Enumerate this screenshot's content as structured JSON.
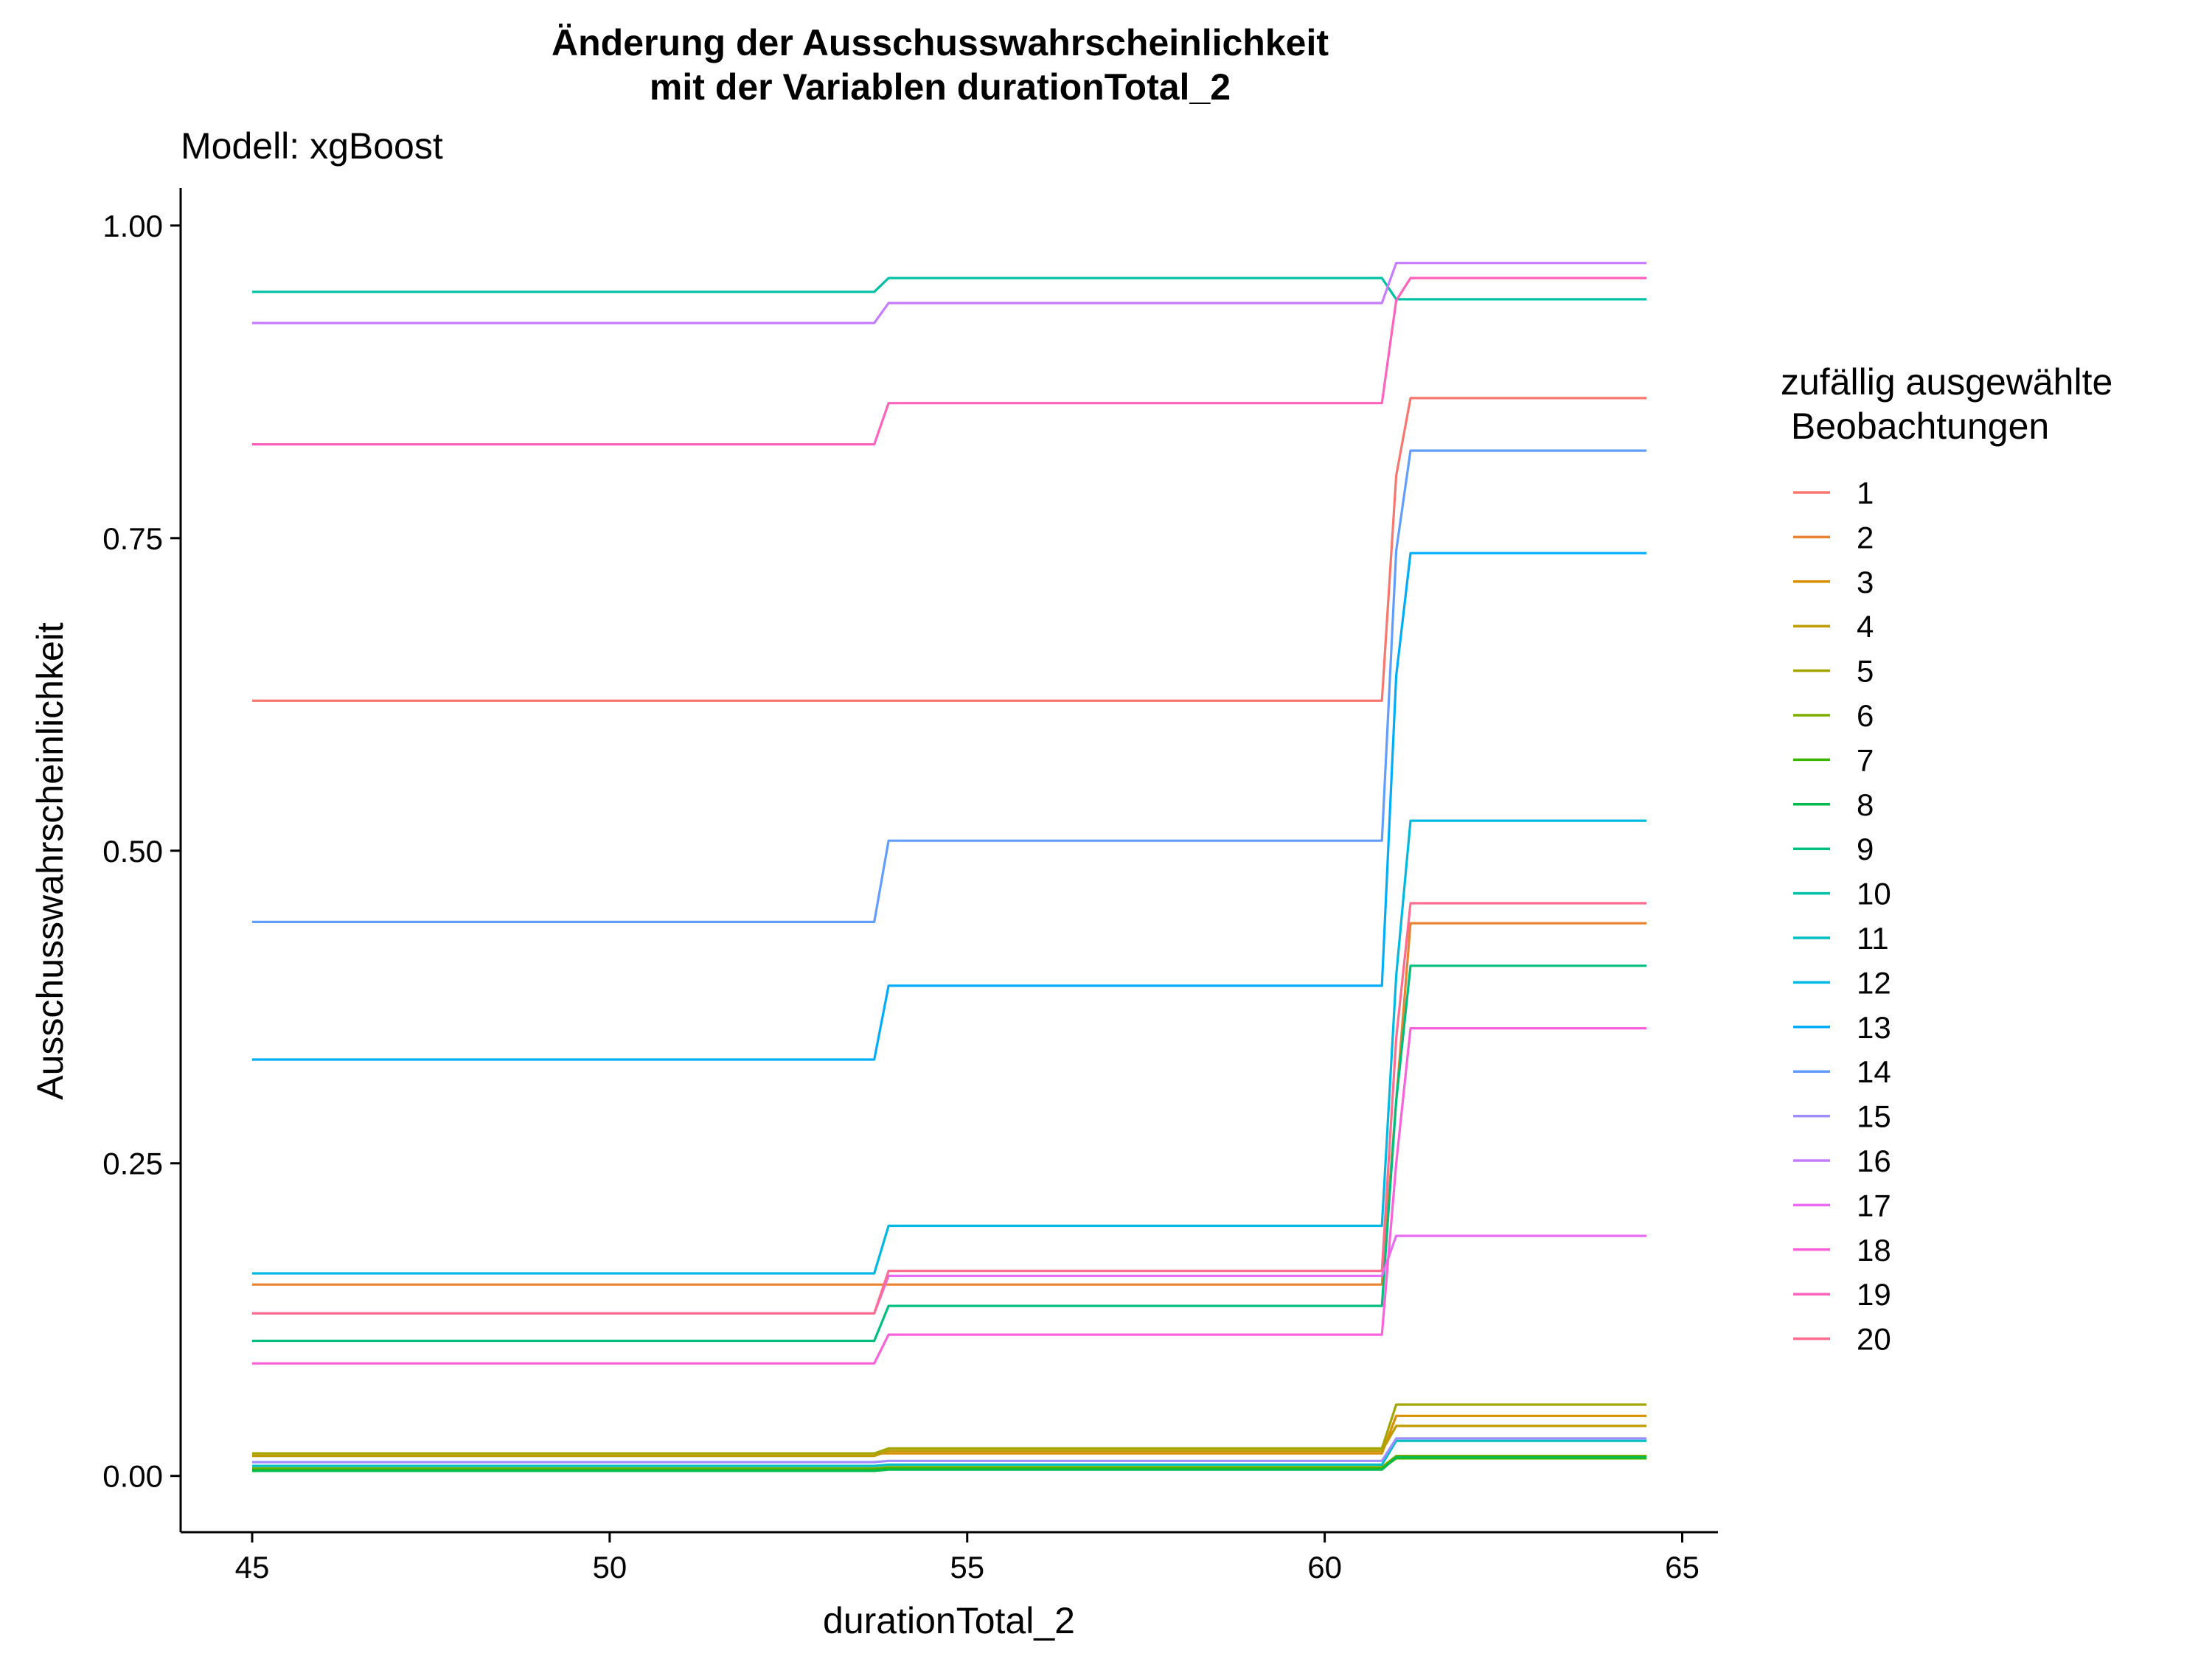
{
  "chart_data": {
    "type": "line",
    "title_line1": "Änderung der Ausschusswahrscheinlichkeit",
    "title_line2": "mit der Variablen durationTotal_2",
    "subtitle": "Modell: xgBoost",
    "xlabel": "durationTotal_2",
    "ylabel": "Ausschusswahrscheinlichkeit",
    "xlim": [
      44,
      65.5
    ],
    "ylim": [
      -0.045,
      1.03
    ],
    "x_ticks": [
      45,
      50,
      55,
      60,
      65
    ],
    "x_tick_labels": [
      "45",
      "50",
      "55",
      "60",
      "65"
    ],
    "y_ticks": [
      0,
      0.25,
      0.5,
      0.75,
      1.0
    ],
    "y_tick_labels": [
      "0.00",
      "0.25",
      "0.50",
      "0.75",
      "1.00"
    ],
    "grid": false,
    "legend_title_line1": "zufällig ausgewählte",
    "legend_title_line2": " Beobachtungen",
    "legend_position": "right",
    "x": [
      45,
      53.7,
      53.9,
      60.8,
      61.0,
      61.2,
      64.5
    ],
    "series": [
      {
        "name": "1",
        "color": "#F8766D",
        "values": [
          0.62,
          0.62,
          0.62,
          0.62,
          0.8,
          0.862,
          0.862
        ]
      },
      {
        "name": "2",
        "color": "#EA8331",
        "values": [
          0.153,
          0.153,
          0.153,
          0.153,
          0.3,
          0.442,
          0.442
        ]
      },
      {
        "name": "3",
        "color": "#D89000",
        "values": [
          0.018,
          0.018,
          0.018,
          0.018,
          0.048,
          0.048,
          0.048
        ]
      },
      {
        "name": "4",
        "color": "#C09B00",
        "values": [
          0.016,
          0.016,
          0.02,
          0.02,
          0.04,
          0.04,
          0.04
        ]
      },
      {
        "name": "5",
        "color": "#A3A500",
        "values": [
          0.018,
          0.018,
          0.022,
          0.022,
          0.057,
          0.057,
          0.057
        ]
      },
      {
        "name": "6",
        "color": "#7CAE00",
        "values": [
          0.006,
          0.006,
          0.007,
          0.007,
          0.016,
          0.016,
          0.016
        ]
      },
      {
        "name": "7",
        "color": "#39B600",
        "values": [
          0.005,
          0.005,
          0.006,
          0.006,
          0.014,
          0.014,
          0.014
        ]
      },
      {
        "name": "8",
        "color": "#00BB4E",
        "values": [
          0.004,
          0.004,
          0.005,
          0.005,
          0.015,
          0.015,
          0.015
        ]
      },
      {
        "name": "9",
        "color": "#00BF7D",
        "values": [
          0.108,
          0.108,
          0.136,
          0.136,
          0.3,
          0.408,
          0.408
        ]
      },
      {
        "name": "10",
        "color": "#00C1A3",
        "values": [
          0.947,
          0.947,
          0.958,
          0.958,
          0.941,
          0.941,
          0.941
        ]
      },
      {
        "name": "11",
        "color": "#00BFC4",
        "values": [
          0.008,
          0.008,
          0.009,
          0.009,
          0.028,
          0.028,
          0.028
        ]
      },
      {
        "name": "12",
        "color": "#00B9E3",
        "values": [
          0.162,
          0.162,
          0.2,
          0.2,
          0.4,
          0.524,
          0.524
        ]
      },
      {
        "name": "13",
        "color": "#00ADFA",
        "values": [
          0.333,
          0.333,
          0.392,
          0.392,
          0.64,
          0.738,
          0.738
        ]
      },
      {
        "name": "14",
        "color": "#619CFF",
        "values": [
          0.443,
          0.443,
          0.508,
          0.508,
          0.74,
          0.82,
          0.82
        ]
      },
      {
        "name": "15",
        "color": "#9F8CFF",
        "values": [
          0.011,
          0.011,
          0.012,
          0.012,
          0.03,
          0.03,
          0.03
        ]
      },
      {
        "name": "16",
        "color": "#C77CFF",
        "values": [
          0.922,
          0.922,
          0.938,
          0.938,
          0.97,
          0.97,
          0.97
        ]
      },
      {
        "name": "17",
        "color": "#E76BF3",
        "values": [
          0.13,
          0.13,
          0.16,
          0.16,
          0.192,
          0.192,
          0.192
        ]
      },
      {
        "name": "18",
        "color": "#FA62DB",
        "values": [
          0.09,
          0.09,
          0.113,
          0.113,
          0.25,
          0.358,
          0.358
        ]
      },
      {
        "name": "19",
        "color": "#FF62BC",
        "values": [
          0.825,
          0.825,
          0.858,
          0.858,
          0.94,
          0.958,
          0.958
        ]
      },
      {
        "name": "20",
        "color": "#FF6C90",
        "values": [
          0.13,
          0.13,
          0.164,
          0.164,
          0.35,
          0.458,
          0.458
        ]
      }
    ]
  }
}
